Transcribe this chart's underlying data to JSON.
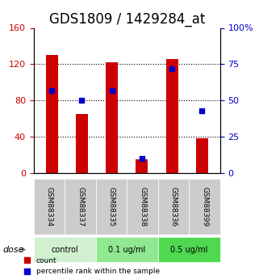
{
  "title": "GDS1809 / 1429284_at",
  "samples": [
    "GSM88334",
    "GSM88337",
    "GSM88335",
    "GSM88338",
    "GSM88336",
    "GSM88399"
  ],
  "red_values": [
    130,
    65,
    122,
    15,
    126,
    38
  ],
  "blue_values": [
    57,
    50,
    57,
    10,
    72,
    43
  ],
  "groups": [
    {
      "label": "control",
      "span": [
        0,
        2
      ],
      "color": "#d0f0d0"
    },
    {
      "label": "0.1 ug/ml",
      "span": [
        2,
        4
      ],
      "color": "#90e890"
    },
    {
      "label": "0.5 ug/ml",
      "span": [
        4,
        6
      ],
      "color": "#50d850"
    }
  ],
  "red_ylim": [
    0,
    160
  ],
  "blue_ylim": [
    0,
    100
  ],
  "red_yticks": [
    0,
    40,
    80,
    120,
    160
  ],
  "blue_yticks": [
    0,
    25,
    50,
    75,
    100
  ],
  "blue_yticklabels": [
    "0",
    "25",
    "50",
    "75",
    "100%"
  ],
  "red_color": "#cc0000",
  "blue_color": "#0000cc",
  "bar_width": 0.4,
  "tick_label_bg_color": "#cccccc",
  "legend_count_label": "count",
  "legend_pct_label": "percentile rank within the sample",
  "dose_label": "dose",
  "xlabel_fontsize": 8,
  "title_fontsize": 12
}
